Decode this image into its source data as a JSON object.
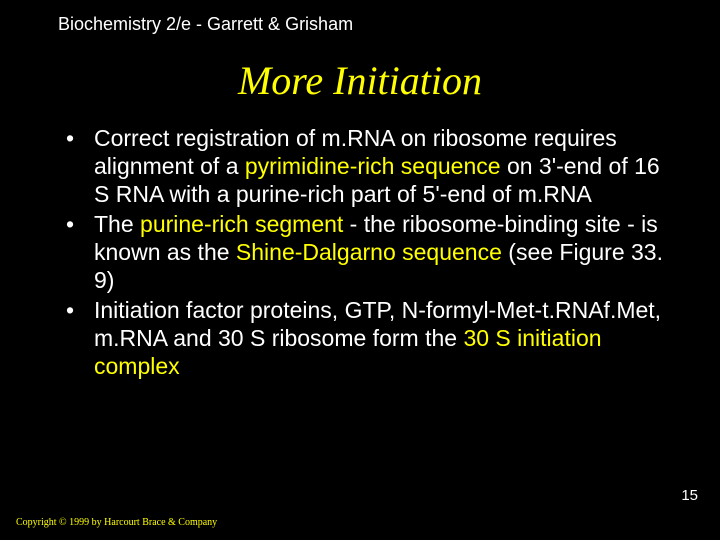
{
  "header": "Biochemistry 2/e - Garrett & Grisham",
  "title": "More Initiation",
  "bullets": [
    {
      "parts": [
        {
          "t": "Correct registration of m.RNA on ribosome requires alignment of a ",
          "hl": false
        },
        {
          "t": "pyrimidine-rich sequence",
          "hl": true
        },
        {
          "t": " on 3'-end of 16 S RNA with a purine-rich part of 5'-end of m.RNA",
          "hl": false
        }
      ]
    },
    {
      "parts": [
        {
          "t": "The ",
          "hl": false
        },
        {
          "t": "purine-rich segment",
          "hl": true
        },
        {
          "t": " - the ribosome-binding site - is known as the ",
          "hl": false
        },
        {
          "t": "Shine-Dalgarno sequence",
          "hl": true
        },
        {
          "t": " (see Figure 33. 9)",
          "hl": false
        }
      ]
    },
    {
      "parts": [
        {
          "t": "Initiation factor proteins, GTP, N-formyl-Met-t.RNAf.Met, m.RNA and 30 S ribosome form the ",
          "hl": false
        },
        {
          "t": "30 S initiation complex",
          "hl": true
        }
      ]
    }
  ],
  "pagenum": "15",
  "copyright": "Copyright © 1999 by Harcourt Brace & Company"
}
